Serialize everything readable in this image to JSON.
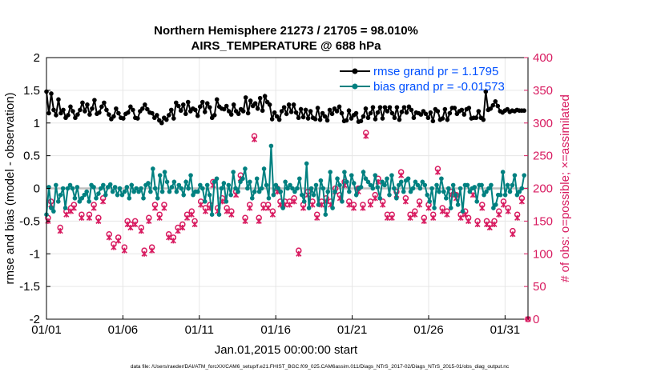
{
  "chart_data": {
    "type": "line",
    "title_line1": "Northern Hemisphere 21273 / 21705 = 98.010%",
    "title_line2": "AIRS_TEMPERATURE @ 688 hPa",
    "xlabel": "Jan.01,2015 00:00:00 start",
    "ylabel_left": "rmse and bias (model - observation)",
    "ylabel_right": "# of obs: o=possible; ×=assimilated",
    "footnote": "data file: /Users/raeder/DAI/ATM_forcXX/CAM6_setup/f.e21.FHIST_BGC.f09_025.CAM6assim.011/Diags_NTrS_2017-02/Diags_NTrS_2015-01/obs_diag_output.nc",
    "xlim": [
      0,
      31.5
    ],
    "xticks": [
      0,
      5,
      10,
      15,
      20,
      25,
      30
    ],
    "xtick_labels": [
      "01/01",
      "01/06",
      "01/11",
      "01/16",
      "01/21",
      "01/26",
      "01/31"
    ],
    "ylim_left": [
      -2,
      2
    ],
    "yticks_left": [
      -2,
      -1.5,
      -1,
      -0.5,
      0,
      0.5,
      1,
      1.5,
      2
    ],
    "ytick_labels_left": [
      "-2",
      "-1.5",
      "-1",
      "-0.5",
      "0",
      "0.5",
      "1",
      "1.5",
      "2"
    ],
    "ylim_right": [
      0,
      400
    ],
    "yticks_right": [
      0,
      50,
      100,
      150,
      200,
      250,
      300,
      350,
      400
    ],
    "ytick_labels_right": [
      "0",
      "50",
      "100",
      "150",
      "200",
      "250",
      "300",
      "350",
      "400"
    ],
    "colors": {
      "rmse": "#000000",
      "bias": "#008080",
      "obs": "#d81b60",
      "zero": "#bfbfbf",
      "legend_text": "#0050ff"
    },
    "legend": [
      {
        "label": "rmse grand pr = 1.1795",
        "series": "rmse"
      },
      {
        "label": "bias grand pr = -0.01573",
        "series": "bias"
      }
    ],
    "rmse": [
      1.48,
      1.15,
      1.45,
      1.2,
      1.12,
      1.36,
      1.15,
      1.2,
      1.08,
      1.12,
      1.25,
      1.18,
      1.08,
      1.13,
      1.2,
      1.31,
      1.18,
      1.28,
      1.13,
      1.22,
      1.35,
      1.14,
      1.16,
      1.25,
      1.31,
      1.2,
      1.13,
      1.06,
      1.1,
      1.22,
      1.15,
      1.08,
      1.07,
      1.14,
      1.16,
      1.25,
      1.2,
      1.08,
      1.07,
      1.18,
      1.22,
      1.28,
      1.21,
      1.16,
      1.15,
      1.08,
      1.12,
      1.04,
      1.0,
      1.08,
      1.05,
      1.12,
      1.2,
      1.07,
      1.31,
      1.26,
      1.19,
      1.28,
      1.14,
      1.32,
      1.18,
      1.22,
      1.2,
      1.11,
      1.25,
      1.32,
      1.17,
      1.3,
      1.24,
      1.08,
      1.12,
      1.36,
      1.25,
      1.22,
      1.21,
      1.26,
      1.18,
      1.13,
      1.28,
      1.18,
      1.14,
      1.21,
      1.18,
      1.39,
      1.15,
      1.34,
      1.26,
      1.3,
      1.22,
      1.38,
      1.19,
      1.41,
      1.32,
      1.28,
      1.06,
      1.16,
      1.1,
      1.05,
      1.18,
      1.24,
      1.14,
      1.28,
      1.17,
      1.28,
      1.16,
      1.08,
      1.21,
      1.09,
      1.2,
      1.07,
      1.18,
      1.08,
      1.06,
      1.23,
      1.05,
      1.15,
      1.1,
      1.04,
      1.2,
      1.14,
      1.22,
      1.18,
      1.25,
      1.15,
      1.03,
      1.04,
      1.19,
      1.07,
      1.12,
      1.15,
      1.02,
      1.03,
      1.1,
      1.22,
      1.08,
      1.15,
      1.24,
      1.06,
      1.16,
      1.24,
      1.07,
      1.24,
      1.18,
      1.24,
      1.15,
      1.08,
      1.24,
      1.05,
      1.17,
      1.24,
      1.16,
      1.25,
      1.2,
      1.08,
      1.16,
      1.15,
      1.13,
      1.18,
      1.14,
      1.08,
      1.16,
      1.03,
      1.21,
      1.18,
      1.05,
      1.07,
      1.21,
      1.05,
      1.15,
      1.23,
      1.23,
      1.14,
      1.18,
      1.2,
      1.13,
      1.21,
      1.23,
      1.07,
      1.08,
      1.08,
      1.18,
      1.08,
      1.05,
      1.48,
      1.2,
      1.22,
      1.27,
      1.33,
      1.26,
      1.18,
      1.16,
      1.19,
      1.21,
      1.17,
      1.19,
      1.18,
      1.2,
      1.19,
      1.19,
      1.19
    ],
    "bias": [
      -0.4,
      0.02,
      -0.3,
      -0.35,
      0.05,
      -0.2,
      -0.1,
      0.0,
      -0.3,
      0.0,
      0.05,
      0.0,
      -0.15,
      0.02,
      -0.2,
      -0.15,
      -0.1,
      -0.05,
      -0.2,
      0.05,
      0.02,
      -0.15,
      -0.08,
      0.0,
      0.05,
      -0.1,
      0.02,
      0.06,
      -0.05,
      0.02,
      -0.1,
      0.0,
      -0.1,
      -0.05,
      0.02,
      -0.15,
      0.05,
      -0.05,
      0.0,
      -0.05,
      0.0,
      -0.15,
      0.05,
      0.08,
      -0.05,
      0.3,
      0.0,
      -0.15,
      0.2,
      -0.05,
      0.25,
      0.1,
      -0.05,
      0.02,
      0.1,
      -0.05,
      0.05,
      0.0,
      -0.1,
      0.1,
      0.0,
      0.2,
      -0.1,
      -0.05,
      -0.05,
      0.05,
      0.0,
      -0.2,
      0.05,
      -0.1,
      -0.4,
      0.1,
      0.15,
      -0.4,
      0.0,
      0.08,
      -0.2,
      0.05,
      -0.1,
      0.25,
      0.0,
      -0.05,
      0.1,
      0.15,
      0.3,
      0.0,
      0.1,
      -0.15,
      -0.05,
      0.15,
      -0.05,
      0.0,
      0.3,
      0.05,
      -0.15,
      0.65,
      -0.1,
      0.05,
      0.0,
      -0.05,
      -0.3,
      0.1,
      0.0,
      0.05,
      0.0,
      -0.05,
      0.0,
      0.15,
      -0.1,
      -0.2,
      0.38,
      -0.3,
      0.0,
      -0.1,
      0.05,
      -0.25,
      0.12,
      0.0,
      -0.4,
      -0.05,
      0.25,
      -0.3,
      -0.05,
      0.15,
      0.05,
      -0.2,
      0.25,
      0.1,
      -0.05,
      0.2,
      0.08,
      -0.1,
      0.0,
      0.02,
      0.25,
      0.15,
      0.1,
      0.05,
      0.0,
      0.2,
      0.02,
      -0.15,
      0.1,
      0.05,
      0.15,
      -0.1,
      0.2,
      0.0,
      -0.15,
      0.05,
      0.1,
      -0.05,
      0.12,
      0.15,
      -0.05,
      0.0,
      0.1,
      0.05,
      0.0,
      0.1,
      0.05,
      -0.1,
      -0.2,
      0.0,
      -0.3,
      0.05,
      -0.05,
      0.15,
      -0.05,
      -0.15,
      0.0,
      -0.3,
      0.05,
      -0.1,
      -0.25,
      0.0,
      -0.35,
      0.05,
      0.05,
      -0.05,
      0.0,
      0.02,
      -0.2,
      0.05,
      0.05,
      -0.1,
      -0.05,
      0.0,
      0.05,
      -0.3,
      -0.25,
      -0.1,
      -0.1,
      0.25,
      -0.1,
      0.05,
      -0.05,
      0.05,
      0.2,
      -0.1,
      -0.05,
      0.0,
      0.2
    ],
    "obs_possible": [
      [
        0.1,
        155
      ],
      [
        0.3,
        180
      ],
      [
        0.9,
        140
      ],
      [
        1.3,
        165
      ],
      [
        1.6,
        170
      ],
      [
        1.8,
        175
      ],
      [
        2.3,
        160
      ],
      [
        2.8,
        160
      ],
      [
        3.1,
        175
      ],
      [
        3.4,
        155
      ],
      [
        3.7,
        185
      ],
      [
        4.1,
        130
      ],
      [
        4.4,
        115
      ],
      [
        4.7,
        125
      ],
      [
        5.1,
        110
      ],
      [
        5.3,
        150
      ],
      [
        5.5,
        145
      ],
      [
        5.8,
        150
      ],
      [
        6.2,
        140
      ],
      [
        6.4,
        105
      ],
      [
        6.7,
        155
      ],
      [
        6.9,
        110
      ],
      [
        7.1,
        175
      ],
      [
        7.4,
        160
      ],
      [
        7.7,
        175
      ],
      [
        8.0,
        130
      ],
      [
        8.3,
        125
      ],
      [
        8.6,
        140
      ],
      [
        8.9,
        145
      ],
      [
        9.2,
        160
      ],
      [
        9.5,
        165
      ],
      [
        9.7,
        150
      ],
      [
        10.1,
        180
      ],
      [
        10.4,
        170
      ],
      [
        10.7,
        175
      ],
      [
        10.9,
        210
      ],
      [
        11.2,
        170
      ],
      [
        11.5,
        185
      ],
      [
        11.8,
        170
      ],
      [
        12.1,
        165
      ],
      [
        12.4,
        195
      ],
      [
        12.7,
        220
      ],
      [
        13.0,
        155
      ],
      [
        13.3,
        175
      ],
      [
        13.6,
        280
      ],
      [
        13.9,
        155
      ],
      [
        14.2,
        175
      ],
      [
        14.5,
        175
      ],
      [
        14.8,
        165
      ],
      [
        15.1,
        200
      ],
      [
        15.3,
        180
      ],
      [
        15.6,
        180
      ],
      [
        15.9,
        180
      ],
      [
        16.2,
        185
      ],
      [
        16.5,
        105
      ],
      [
        16.8,
        175
      ],
      [
        17.1,
        195
      ],
      [
        17.4,
        180
      ],
      [
        17.7,
        160
      ],
      [
        18.0,
        180
      ],
      [
        18.3,
        185
      ],
      [
        18.6,
        180
      ],
      [
        18.9,
        200
      ],
      [
        19.2,
        190
      ],
      [
        19.5,
        210
      ],
      [
        19.8,
        180
      ],
      [
        20.1,
        175
      ],
      [
        20.4,
        200
      ],
      [
        20.7,
        175
      ],
      [
        20.9,
        285
      ],
      [
        21.2,
        180
      ],
      [
        21.5,
        190
      ],
      [
        21.7,
        215
      ],
      [
        22.0,
        180
      ],
      [
        22.3,
        160
      ],
      [
        22.6,
        160
      ],
      [
        22.9,
        195
      ],
      [
        23.2,
        225
      ],
      [
        23.5,
        185
      ],
      [
        23.8,
        160
      ],
      [
        24.1,
        165
      ],
      [
        24.4,
        180
      ],
      [
        24.7,
        155
      ],
      [
        25.0,
        175
      ],
      [
        25.3,
        160
      ],
      [
        25.6,
        230
      ],
      [
        25.9,
        170
      ],
      [
        26.2,
        165
      ],
      [
        26.5,
        195
      ],
      [
        26.8,
        190
      ],
      [
        27.1,
        160
      ],
      [
        27.4,
        165
      ],
      [
        27.6,
        155
      ],
      [
        27.9,
        195
      ],
      [
        28.2,
        150
      ],
      [
        28.5,
        175
      ],
      [
        28.8,
        150
      ],
      [
        29.0,
        145
      ],
      [
        29.3,
        150
      ],
      [
        29.6,
        165
      ],
      [
        29.9,
        180
      ],
      [
        30.2,
        170
      ],
      [
        30.5,
        135
      ],
      [
        30.8,
        160
      ],
      [
        31.1,
        185
      ]
    ],
    "obs_assimilated": [
      [
        0.1,
        150
      ],
      [
        0.3,
        175
      ],
      [
        0.9,
        135
      ],
      [
        1.3,
        160
      ],
      [
        1.6,
        165
      ],
      [
        1.8,
        170
      ],
      [
        2.3,
        155
      ],
      [
        2.8,
        155
      ],
      [
        3.1,
        170
      ],
      [
        3.4,
        150
      ],
      [
        3.7,
        180
      ],
      [
        4.1,
        125
      ],
      [
        4.4,
        110
      ],
      [
        4.7,
        120
      ],
      [
        5.1,
        105
      ],
      [
        5.3,
        145
      ],
      [
        5.5,
        140
      ],
      [
        5.8,
        145
      ],
      [
        6.2,
        135
      ],
      [
        6.4,
        100
      ],
      [
        6.7,
        150
      ],
      [
        6.9,
        105
      ],
      [
        7.1,
        170
      ],
      [
        7.4,
        155
      ],
      [
        7.7,
        170
      ],
      [
        8.0,
        125
      ],
      [
        8.3,
        120
      ],
      [
        8.6,
        135
      ],
      [
        8.9,
        140
      ],
      [
        9.2,
        155
      ],
      [
        9.5,
        160
      ],
      [
        9.7,
        145
      ],
      [
        10.1,
        175
      ],
      [
        10.4,
        165
      ],
      [
        10.7,
        170
      ],
      [
        10.9,
        205
      ],
      [
        11.2,
        165
      ],
      [
        11.5,
        180
      ],
      [
        11.8,
        165
      ],
      [
        12.1,
        160
      ],
      [
        12.4,
        190
      ],
      [
        12.7,
        215
      ],
      [
        13.0,
        150
      ],
      [
        13.3,
        170
      ],
      [
        13.6,
        275
      ],
      [
        13.9,
        150
      ],
      [
        14.2,
        170
      ],
      [
        14.5,
        170
      ],
      [
        14.8,
        160
      ],
      [
        15.1,
        195
      ],
      [
        15.3,
        175
      ],
      [
        15.6,
        175
      ],
      [
        15.9,
        175
      ],
      [
        16.2,
        180
      ],
      [
        16.5,
        100
      ],
      [
        16.8,
        170
      ],
      [
        17.1,
        190
      ],
      [
        17.4,
        175
      ],
      [
        17.7,
        155
      ],
      [
        18.0,
        175
      ],
      [
        18.3,
        180
      ],
      [
        18.6,
        175
      ],
      [
        18.9,
        195
      ],
      [
        19.2,
        185
      ],
      [
        19.5,
        205
      ],
      [
        19.8,
        175
      ],
      [
        20.1,
        170
      ],
      [
        20.4,
        195
      ],
      [
        20.7,
        170
      ],
      [
        20.9,
        280
      ],
      [
        21.2,
        175
      ],
      [
        21.5,
        185
      ],
      [
        21.7,
        210
      ],
      [
        22.0,
        175
      ],
      [
        22.3,
        155
      ],
      [
        22.6,
        155
      ],
      [
        22.9,
        190
      ],
      [
        23.2,
        220
      ],
      [
        23.5,
        180
      ],
      [
        23.8,
        155
      ],
      [
        24.1,
        160
      ],
      [
        24.4,
        175
      ],
      [
        24.7,
        150
      ],
      [
        25.0,
        170
      ],
      [
        25.3,
        155
      ],
      [
        25.6,
        225
      ],
      [
        25.9,
        165
      ],
      [
        26.2,
        160
      ],
      [
        26.5,
        190
      ],
      [
        26.8,
        185
      ],
      [
        27.1,
        155
      ],
      [
        27.4,
        160
      ],
      [
        27.6,
        150
      ],
      [
        27.9,
        190
      ],
      [
        28.2,
        145
      ],
      [
        28.5,
        170
      ],
      [
        28.8,
        145
      ],
      [
        29.0,
        140
      ],
      [
        29.3,
        145
      ],
      [
        29.6,
        160
      ],
      [
        29.9,
        175
      ],
      [
        30.2,
        165
      ],
      [
        30.5,
        130
      ],
      [
        30.8,
        155
      ],
      [
        31.1,
        180
      ]
    ]
  }
}
